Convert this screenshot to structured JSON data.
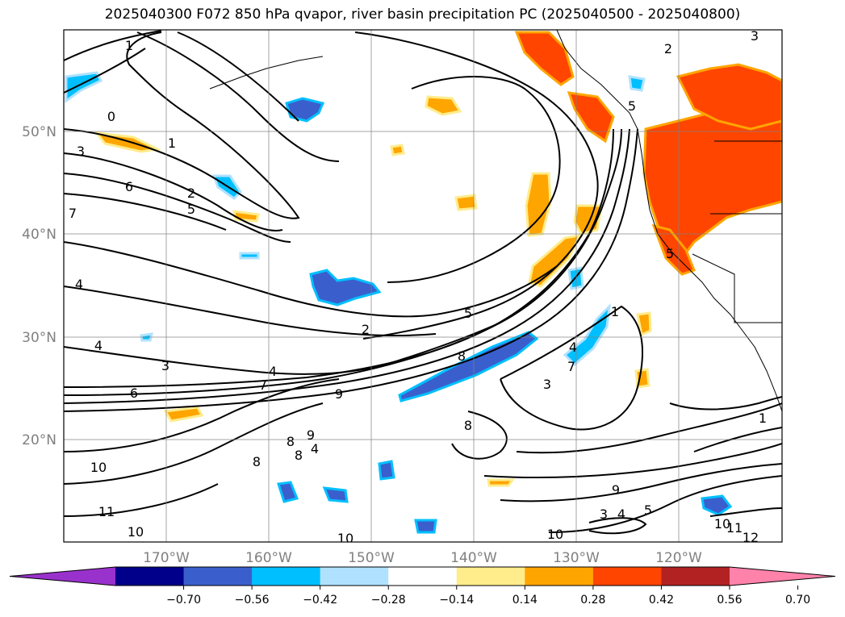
{
  "title": "2025040300 F072 850 hPa qvapor, river basin precipitation PC (2025040500 - 2025040800)",
  "lat_labels": [
    "50°N",
    "40°N",
    "30°N",
    "20°N"
  ],
  "lon_labels": [
    "170°W",
    "160°W",
    "150°W",
    "140°W",
    "130°W",
    "120°W"
  ],
  "colorbar": {
    "ticks": [
      "−0.70",
      "−0.56",
      "−0.42",
      "−0.28",
      "−0.14",
      "0.14",
      "0.28",
      "0.42",
      "0.56",
      "0.70"
    ],
    "colors": [
      "#9932cc",
      "#00008b",
      "#3a5fcd",
      "#00bfff",
      "#b0e2ff",
      "#ffffff",
      "#ffec8b",
      "#ffa500",
      "#ff4500",
      "#b22222",
      "#ff82ab"
    ]
  },
  "contour_labels": [
    {
      "text": "1"
    },
    {
      "text": "0"
    },
    {
      "text": "3"
    },
    {
      "text": "1"
    },
    {
      "text": "6"
    },
    {
      "text": "2"
    },
    {
      "text": "5"
    },
    {
      "text": "7"
    },
    {
      "text": "4"
    },
    {
      "text": "4"
    },
    {
      "text": "3"
    },
    {
      "text": "6"
    },
    {
      "text": "2"
    },
    {
      "text": "5"
    },
    {
      "text": "4"
    },
    {
      "text": "7"
    },
    {
      "text": "9"
    },
    {
      "text": "8"
    },
    {
      "text": "8"
    },
    {
      "text": "8"
    },
    {
      "text": "8"
    },
    {
      "text": "10"
    },
    {
      "text": "11"
    },
    {
      "text": "10"
    },
    {
      "text": "10"
    },
    {
      "text": "10"
    },
    {
      "text": "9"
    },
    {
      "text": "3"
    },
    {
      "text": "4"
    },
    {
      "text": "5"
    },
    {
      "text": "1"
    },
    {
      "text": "7"
    },
    {
      "text": "3"
    },
    {
      "text": "4"
    },
    {
      "text": "8"
    },
    {
      "text": "9"
    },
    {
      "text": "4"
    },
    {
      "text": "5"
    },
    {
      "text": "10"
    },
    {
      "text": "11"
    },
    {
      "text": "12"
    },
    {
      "text": "1"
    },
    {
      "text": "2"
    },
    {
      "text": "5"
    },
    {
      "text": "3"
    }
  ]
}
